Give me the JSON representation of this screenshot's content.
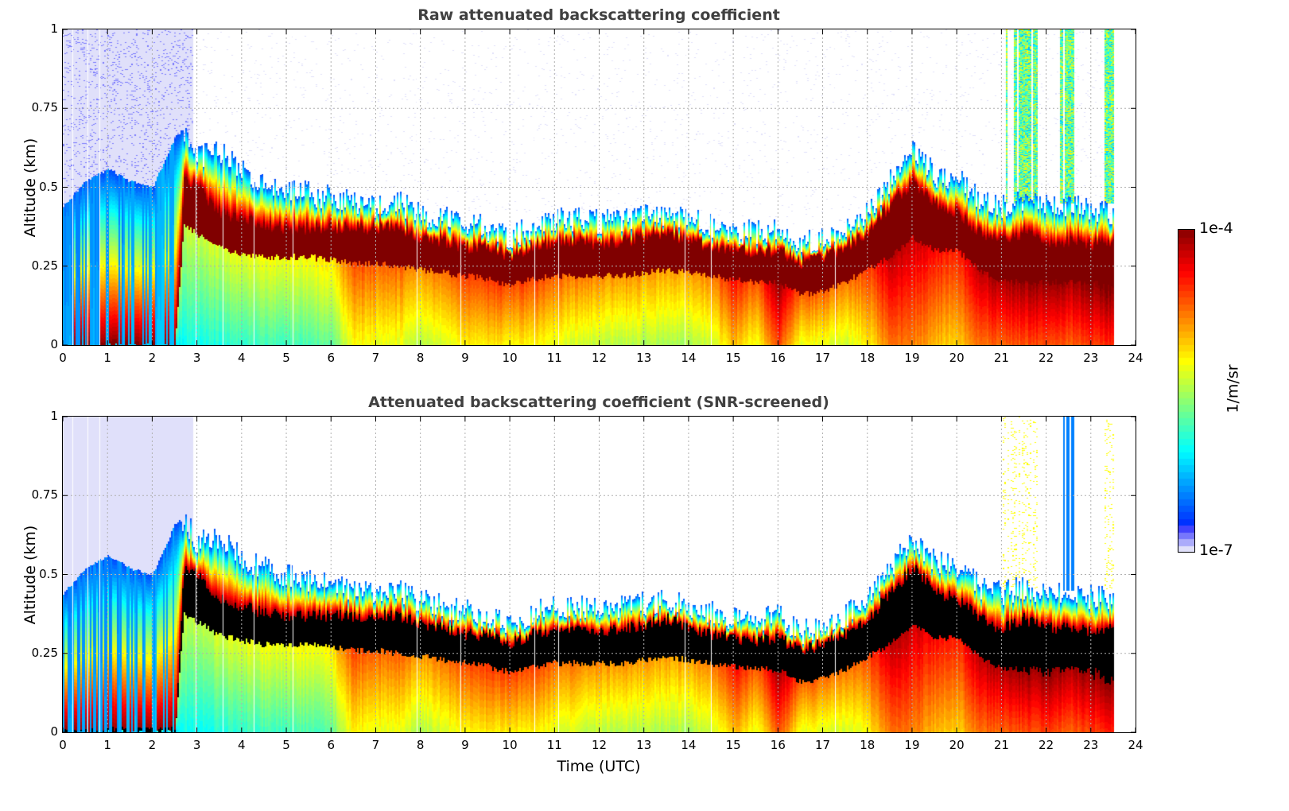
{
  "chart_data": [
    {
      "type": "heatmap",
      "title": "Raw attenuated backscattering coefficient",
      "xlabel": "",
      "ylabel": "Altitude (km)",
      "xlim": [
        0,
        24
      ],
      "ylim": [
        0,
        1
      ],
      "x_ticks": [
        "0",
        "1",
        "2",
        "3",
        "4",
        "5",
        "6",
        "7",
        "8",
        "9",
        "10",
        "11",
        "12",
        "13",
        "14",
        "15",
        "16",
        "17",
        "18",
        "19",
        "20",
        "21",
        "22",
        "23",
        "24"
      ],
      "y_ticks": [
        "0",
        "0.25",
        "0.5",
        "0.75",
        "1"
      ],
      "grid": true,
      "data_end_hour": 23.5,
      "screening": "raw",
      "profile_hours": [
        0,
        0.5,
        1,
        1.5,
        2,
        2.5,
        2.7,
        3,
        3.5,
        4,
        4.5,
        5,
        5.5,
        6,
        6.5,
        7,
        7.5,
        8,
        8.5,
        9,
        9.5,
        10,
        10.5,
        11,
        11.5,
        12,
        12.5,
        13,
        13.5,
        14,
        14.5,
        15,
        15.5,
        16,
        16.5,
        17,
        17.5,
        18,
        18.5,
        19,
        19.5,
        20,
        20.5,
        21,
        21.5,
        22,
        22.5,
        23,
        23.5
      ],
      "layer_top_km": [
        0.44,
        0.52,
        0.56,
        0.52,
        0.5,
        0.66,
        0.68,
        0.6,
        0.62,
        0.55,
        0.52,
        0.5,
        0.48,
        0.47,
        0.45,
        0.44,
        0.45,
        0.42,
        0.4,
        0.39,
        0.37,
        0.34,
        0.38,
        0.4,
        0.4,
        0.39,
        0.4,
        0.41,
        0.42,
        0.4,
        0.38,
        0.36,
        0.36,
        0.37,
        0.32,
        0.34,
        0.37,
        0.43,
        0.52,
        0.62,
        0.54,
        0.53,
        0.46,
        0.44,
        0.46,
        0.44,
        0.44,
        0.43,
        0.42
      ],
      "layer_peak_top_km": [
        0,
        0,
        0,
        0,
        0,
        0,
        0.52,
        0.5,
        0.42,
        0.4,
        0.38,
        0.37,
        0.37,
        0.37,
        0.37,
        0.37,
        0.37,
        0.34,
        0.33,
        0.31,
        0.31,
        0.28,
        0.31,
        0.33,
        0.33,
        0.32,
        0.33,
        0.34,
        0.36,
        0.33,
        0.31,
        0.3,
        0.29,
        0.3,
        0.26,
        0.28,
        0.31,
        0.36,
        0.44,
        0.52,
        0.45,
        0.42,
        0.36,
        0.33,
        0.36,
        0.33,
        0.33,
        0.32,
        0.33
      ],
      "layer_peak_base_km": [
        0,
        0,
        0,
        0,
        0,
        0,
        0.38,
        0.35,
        0.31,
        0.29,
        0.28,
        0.28,
        0.28,
        0.27,
        0.26,
        0.26,
        0.25,
        0.24,
        0.23,
        0.22,
        0.21,
        0.19,
        0.21,
        0.22,
        0.22,
        0.22,
        0.22,
        0.23,
        0.24,
        0.23,
        0.22,
        0.21,
        0.2,
        0.2,
        0.16,
        0.17,
        0.2,
        0.24,
        0.28,
        0.34,
        0.3,
        0.3,
        0.24,
        0.2,
        0.2,
        0.2,
        0.2,
        0.2,
        0.2
      ],
      "surface_log_beta": [
        -6.35,
        -6.35,
        -6.35,
        -6.3,
        -6.3,
        -6.2,
        -6.0,
        -6.0,
        -5.95,
        -5.9,
        -5.85,
        -5.85,
        -5.8,
        -5.75,
        -5.2,
        -5.3,
        -5.3,
        -5.5,
        -5.35,
        -5.2,
        -5.15,
        -5.2,
        -5.2,
        -5.3,
        -5.4,
        -5.45,
        -5.45,
        -5.5,
        -5.5,
        -5.5,
        -5.4,
        -5.0,
        -5.3,
        -4.6,
        -5.3,
        -5.3,
        -5.4,
        -5.2,
        -4.75,
        -4.8,
        -5.0,
        -5.1,
        -4.75,
        -4.7,
        -4.65,
        -4.6,
        -4.7,
        -4.6,
        -4.5
      ],
      "high_cloud_hours": [
        [
          21.0,
          21.8
        ],
        [
          22.3,
          22.6
        ],
        [
          23.3,
          23.5
        ]
      ],
      "black_saturation": false
    },
    {
      "type": "heatmap",
      "title": "Attenuated backscattering coefficient (SNR-screened)",
      "xlabel": "Time (UTC)",
      "ylabel": "Altitude (km)",
      "xlim": [
        0,
        24
      ],
      "ylim": [
        0,
        1
      ],
      "x_ticks": [
        "0",
        "1",
        "2",
        "3",
        "4",
        "5",
        "6",
        "7",
        "8",
        "9",
        "10",
        "11",
        "12",
        "13",
        "14",
        "15",
        "16",
        "17",
        "18",
        "19",
        "20",
        "21",
        "22",
        "23",
        "24"
      ],
      "y_ticks": [
        "0",
        "0.25",
        "0.5",
        "0.75",
        "1"
      ],
      "grid": true,
      "data_end_hour": 23.5,
      "screening": "snr",
      "black_saturation": true
    }
  ],
  "colorbar": {
    "max_label": "1e-4",
    "min_label": "1e-7",
    "unit": "1/m/sr",
    "colormap": "jet",
    "min_log": -7,
    "max_log": -4,
    "saturation_color": "#000000",
    "low_color": "#e0e0fa"
  }
}
